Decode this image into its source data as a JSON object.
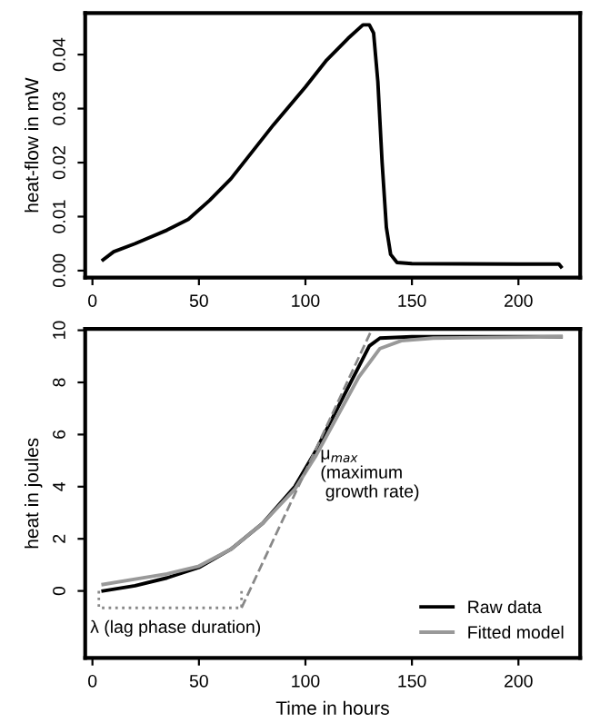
{
  "chart_data": [
    {
      "type": "line",
      "ylabel": "heat-flow in mW",
      "xlim": [
        -3.4,
        229
      ],
      "ylim": [
        -0.0013,
        0.0477
      ],
      "xticks": [
        0,
        50,
        100,
        150,
        200
      ],
      "yticks": [
        {
          "value": 0,
          "label": "0.00"
        },
        {
          "value": 0.01,
          "label": "0.01"
        },
        {
          "value": 0.02,
          "label": "0.02"
        },
        {
          "value": 0.03,
          "label": "0.03"
        },
        {
          "value": 0.04,
          "label": "0.04"
        }
      ],
      "grid": false,
      "legend": false,
      "series": [
        {
          "color": "#000000",
          "x": [
            5,
            10,
            20,
            35,
            45,
            55,
            65,
            75,
            85,
            100,
            110,
            120,
            127,
            130,
            132,
            134,
            136,
            138,
            140,
            143,
            150,
            200,
            219,
            220
          ],
          "values": [
            0.002,
            0.0035,
            0.005,
            0.0075,
            0.0095,
            0.013,
            0.017,
            0.022,
            0.027,
            0.034,
            0.039,
            0.043,
            0.0455,
            0.0455,
            0.044,
            0.035,
            0.02,
            0.008,
            0.003,
            0.0015,
            0.0013,
            0.0012,
            0.0012,
            0.0007
          ]
        }
      ]
    },
    {
      "type": "line",
      "xlabel": "Time in hours",
      "ylabel": "heat in joules",
      "xlim": [
        -3.4,
        229
      ],
      "ylim": [
        -2.57,
        10.05
      ],
      "xticks": [
        0,
        50,
        100,
        150,
        200
      ],
      "yticks": [
        0,
        2,
        4,
        6,
        8,
        10
      ],
      "grid": false,
      "legend": "bottom right",
      "series": [
        {
          "name": "Raw data",
          "color": "#000000",
          "x": [
            5,
            20,
            35,
            50,
            65,
            80,
            95,
            105,
            115,
            125,
            130,
            135,
            150,
            220
          ],
          "values": [
            0,
            0.2,
            0.5,
            0.9,
            1.6,
            2.6,
            4,
            5.4,
            7,
            8.6,
            9.4,
            9.7,
            9.75,
            9.75
          ]
        },
        {
          "name": "Fitted model",
          "color": "#999999",
          "x": [
            5,
            20,
            35,
            50,
            65,
            80,
            95,
            105,
            115,
            125,
            135,
            145,
            160,
            220
          ],
          "values": [
            0.25,
            0.45,
            0.65,
            0.95,
            1.6,
            2.6,
            3.9,
            5.2,
            6.7,
            8.2,
            9.3,
            9.6,
            9.7,
            9.75
          ]
        },
        {
          "color": "#888888",
          "line_style": "dashed",
          "x": [
            70,
            131
          ],
          "values": [
            -0.65,
            10
          ]
        },
        {
          "color": "#888888",
          "line_style": "dotted",
          "x": [
            3,
            3,
            70,
            70
          ],
          "values": [
            0,
            -0.65,
            -0.65,
            0
          ]
        }
      ],
      "annotations": [
        "λ (lag phase duration)",
        "μ$_{max}$\n(maximum\n growth rate)"
      ]
    }
  ]
}
